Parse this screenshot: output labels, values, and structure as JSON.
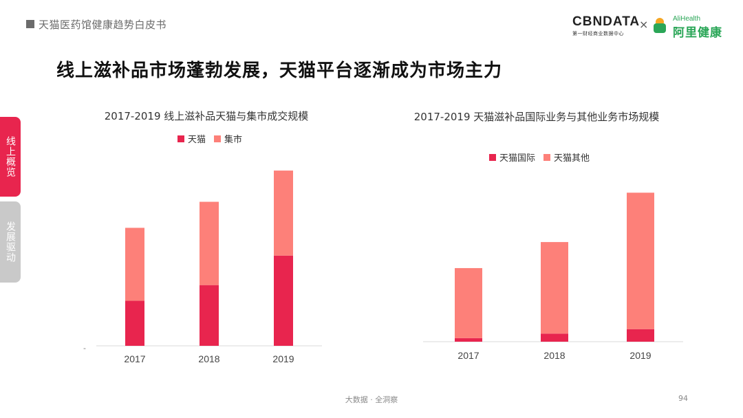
{
  "header": {
    "title": "天猫医药馆健康趋势白皮书"
  },
  "logos": {
    "cbn_main": "CBNDATA",
    "cbn_sub": "第一财经商业数据中心",
    "separator": "×",
    "ali_en": "AliHealth",
    "ali_cn": "阿里健康"
  },
  "slide": {
    "title": "线上滋补品市场蓬勃发展，天猫平台逐渐成为市场主力"
  },
  "side_tabs": [
    {
      "label": "线上概览",
      "active": true
    },
    {
      "label": "发展驱动",
      "active": false
    }
  ],
  "colors": {
    "primary": "#e8254e",
    "secondary": "#fd8079",
    "inactive": "#c9c9c9"
  },
  "chart_data": [
    {
      "type": "bar",
      "stacked": true,
      "title": "2017-2019 线上滋补品天猫与集市成交规模",
      "categories": [
        "2017",
        "2018",
        "2019"
      ],
      "series": [
        {
          "name": "天猫",
          "color": "#e8254e",
          "values": [
            26,
            35,
            52
          ]
        },
        {
          "name": "集市",
          "color": "#fd8079",
          "values": [
            42,
            48,
            49
          ]
        }
      ],
      "ylim": [
        0,
        105
      ],
      "axis_mark": "-",
      "grid": false,
      "legend_position": "top"
    },
    {
      "type": "bar",
      "stacked": true,
      "title": "2017-2019 天猫滋补品国际业务与其他业务市场规模",
      "categories": [
        "2017",
        "2018",
        "2019"
      ],
      "series": [
        {
          "name": "天猫国际",
          "color": "#e8254e",
          "values": [
            2,
            4.5,
            7
          ]
        },
        {
          "name": "天猫其他",
          "color": "#fd8079",
          "values": [
            39,
            51,
            76
          ]
        }
      ],
      "ylim": [
        0,
        90
      ],
      "grid": false,
      "legend_position": "top"
    }
  ],
  "footer": {
    "text": "大数据 · 全洞察",
    "page": "94"
  }
}
